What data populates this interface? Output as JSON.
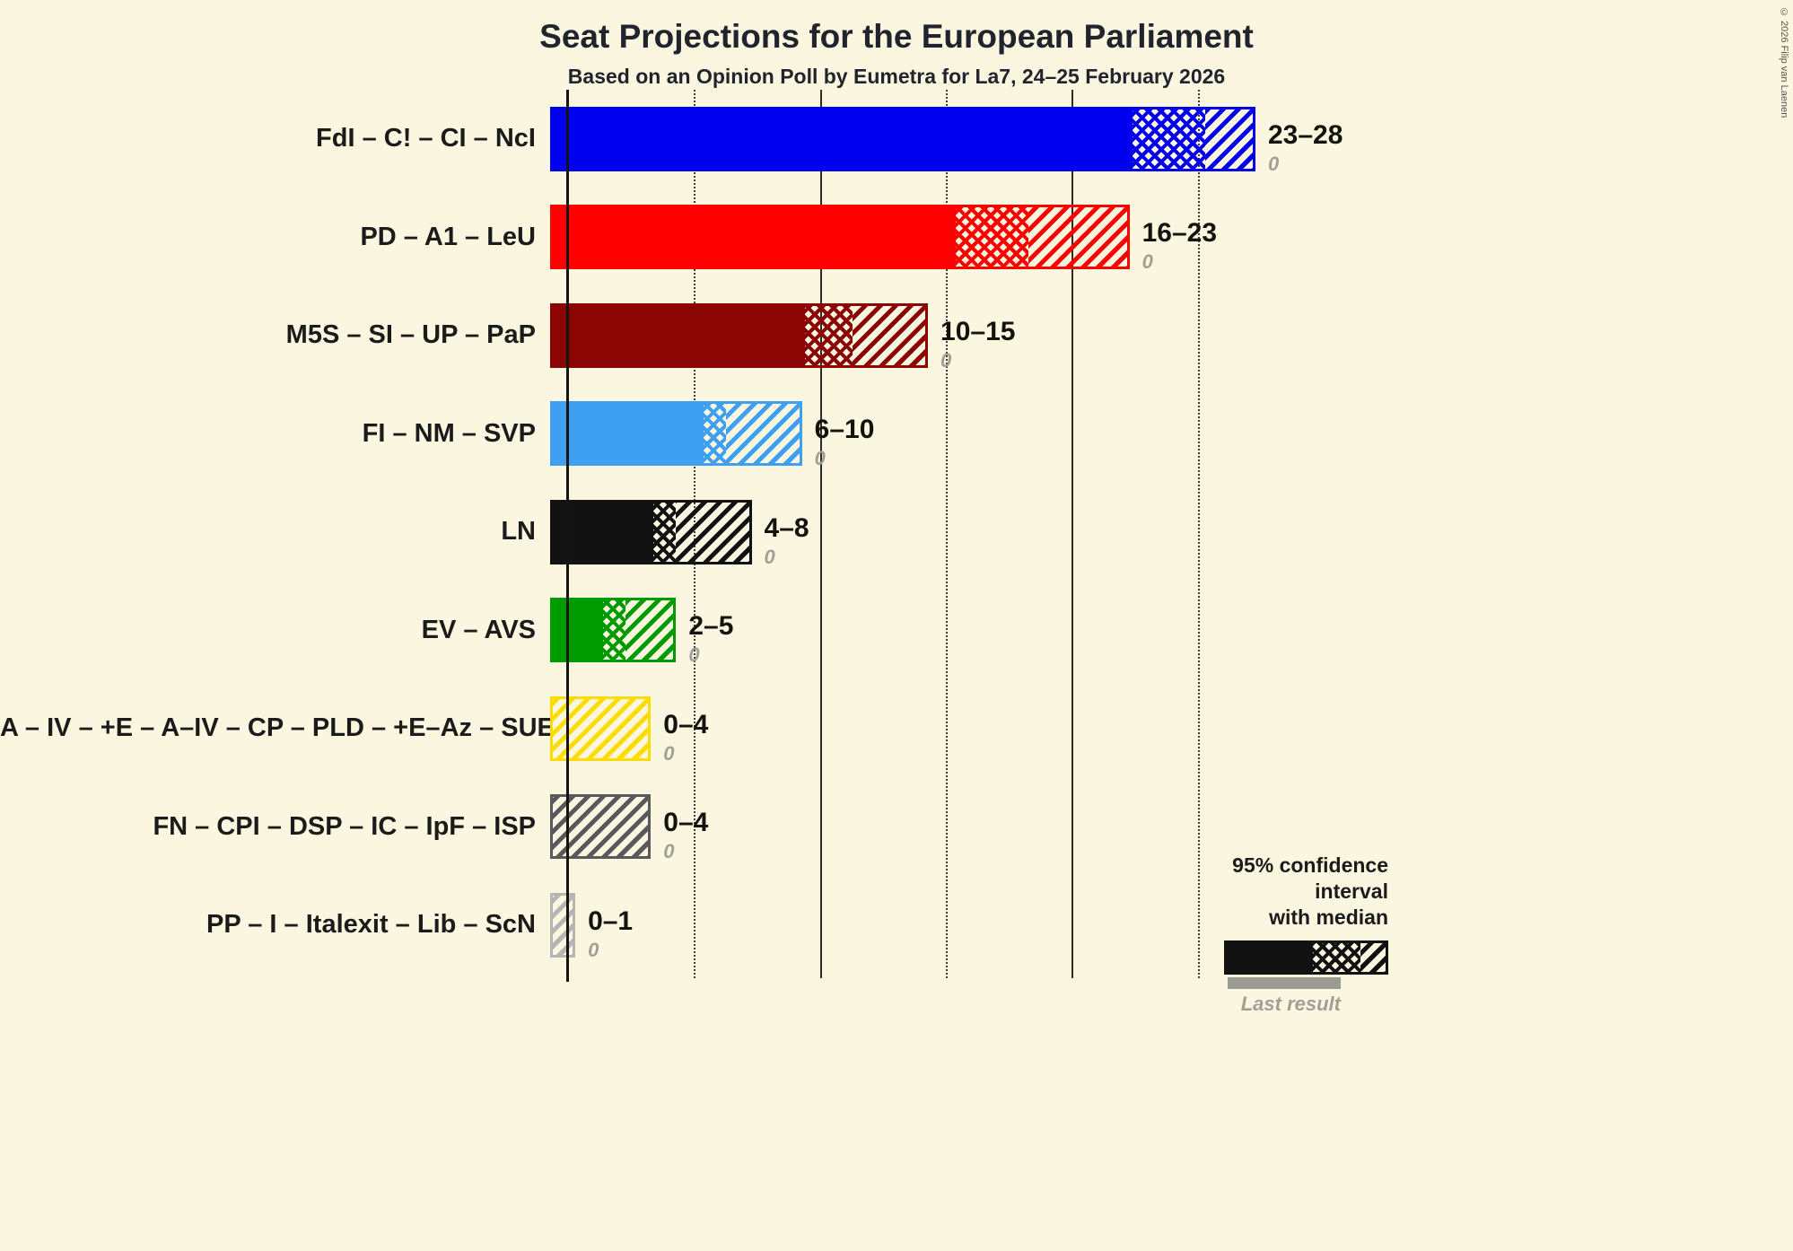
{
  "title": "Seat Projections for the European Parliament",
  "subtitle": "Based on an Opinion Poll by Eumetra for La7, 24–25 February 2026",
  "copyright": "© 2026 Filip van Laenen",
  "legend": {
    "ci_label_line1": "95% confidence interval",
    "ci_label_line2": "with median",
    "last_result_label": "Last result",
    "sample_color": "#121212",
    "last_result_color": "#9b9b93"
  },
  "chart_data": {
    "type": "bar",
    "orientation": "horizontal",
    "title": "Seat Projections for the European Parliament",
    "subtitle": "Based on an Opinion Poll by Eumetra for La7, 24–25 February 2026",
    "unit": "seats",
    "x_axis": {
      "min": 0,
      "max": 28,
      "gridlines_dotted": [
        5,
        15,
        25
      ],
      "gridlines_solid": [
        10,
        20
      ]
    },
    "series": [
      {
        "label": "FdI – C! – CI – NcI",
        "color": "#0000EE",
        "ci_low": 23,
        "median": 26,
        "ci_high": 28,
        "range_label": "23–28",
        "last_result": "0",
        "last_result_value": 0
      },
      {
        "label": "PD – A1 – LeU",
        "color": "#FE0000",
        "ci_low": 16,
        "median": 19,
        "ci_high": 23,
        "range_label": "16–23",
        "last_result": "0",
        "last_result_value": 0
      },
      {
        "label": "M5S – SI – UP – PaP",
        "color": "#8B0505",
        "ci_low": 10,
        "median": 12,
        "ci_high": 15,
        "range_label": "10–15",
        "last_result": "0",
        "last_result_value": 0
      },
      {
        "label": "FI – NM – SVP",
        "color": "#3FA0F2",
        "ci_low": 6,
        "median": 7,
        "ci_high": 10,
        "range_label": "6–10",
        "last_result": "0",
        "last_result_value": 0
      },
      {
        "label": "LN",
        "color": "#121212",
        "ci_low": 4,
        "median": 5,
        "ci_high": 8,
        "range_label": "4–8",
        "last_result": "0",
        "last_result_value": 0
      },
      {
        "label": "EV – AVS",
        "color": "#009B00",
        "ci_low": 2,
        "median": 3,
        "ci_high": 5,
        "range_label": "2–5",
        "last_result": "0",
        "last_result_value": 0
      },
      {
        "label": "A – IV – +E – A–IV – CP – PLD – +E–Az – SUE",
        "color": "#FFDC00",
        "ci_low": 0,
        "median": 0,
        "ci_high": 4,
        "range_label": "0–4",
        "last_result": "0",
        "last_result_value": 0
      },
      {
        "label": "FN – CPI – DSP – IC – IpF – ISP",
        "color": "#59595B",
        "ci_low": 0,
        "median": 0,
        "ci_high": 4,
        "range_label": "0–4",
        "last_result": "0",
        "last_result_value": 0
      },
      {
        "label": "PP – I – Italexit – Lib – ScN",
        "color": "#B5B5B5",
        "ci_low": 0,
        "median": 0,
        "ci_high": 1,
        "range_label": "0–1",
        "last_result": "0",
        "last_result_value": 0
      }
    ]
  }
}
